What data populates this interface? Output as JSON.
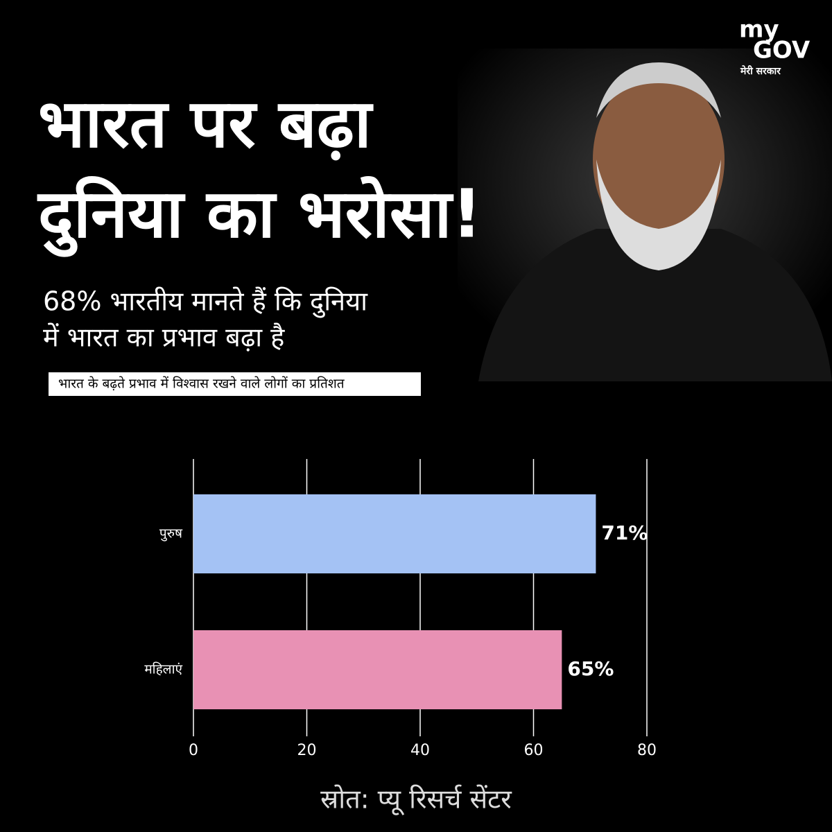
{
  "logo": {
    "line1": "my",
    "line2": "GOV",
    "tagline": "मेरी सरकार"
  },
  "header": {
    "title_lines": [
      "भारत पर बढ़ा",
      "दुनिया का भरोसा!"
    ],
    "subtitle_lines": [
      "68% भारतीय मानते हैं कि दुनिया",
      "में भारत का प्रभाव बढ़ा है"
    ]
  },
  "chart_data": {
    "type": "bar",
    "orientation": "horizontal",
    "title": "भारत के बढ़ते प्रभाव में विश्वास रखने वाले लोगों का प्रतिशत",
    "categories": [
      "पुरुष",
      "महिलाएं"
    ],
    "values": [
      71,
      65
    ],
    "value_labels": [
      "71%",
      "65%"
    ],
    "colors": [
      "#a4c2f4",
      "#e891b4"
    ],
    "xlim": [
      0,
      80
    ],
    "xticks": [
      0,
      20,
      40,
      60,
      80
    ],
    "grid": true
  },
  "footer": {
    "source": "स्रोत: प्यू रिसर्च सेंटर"
  }
}
